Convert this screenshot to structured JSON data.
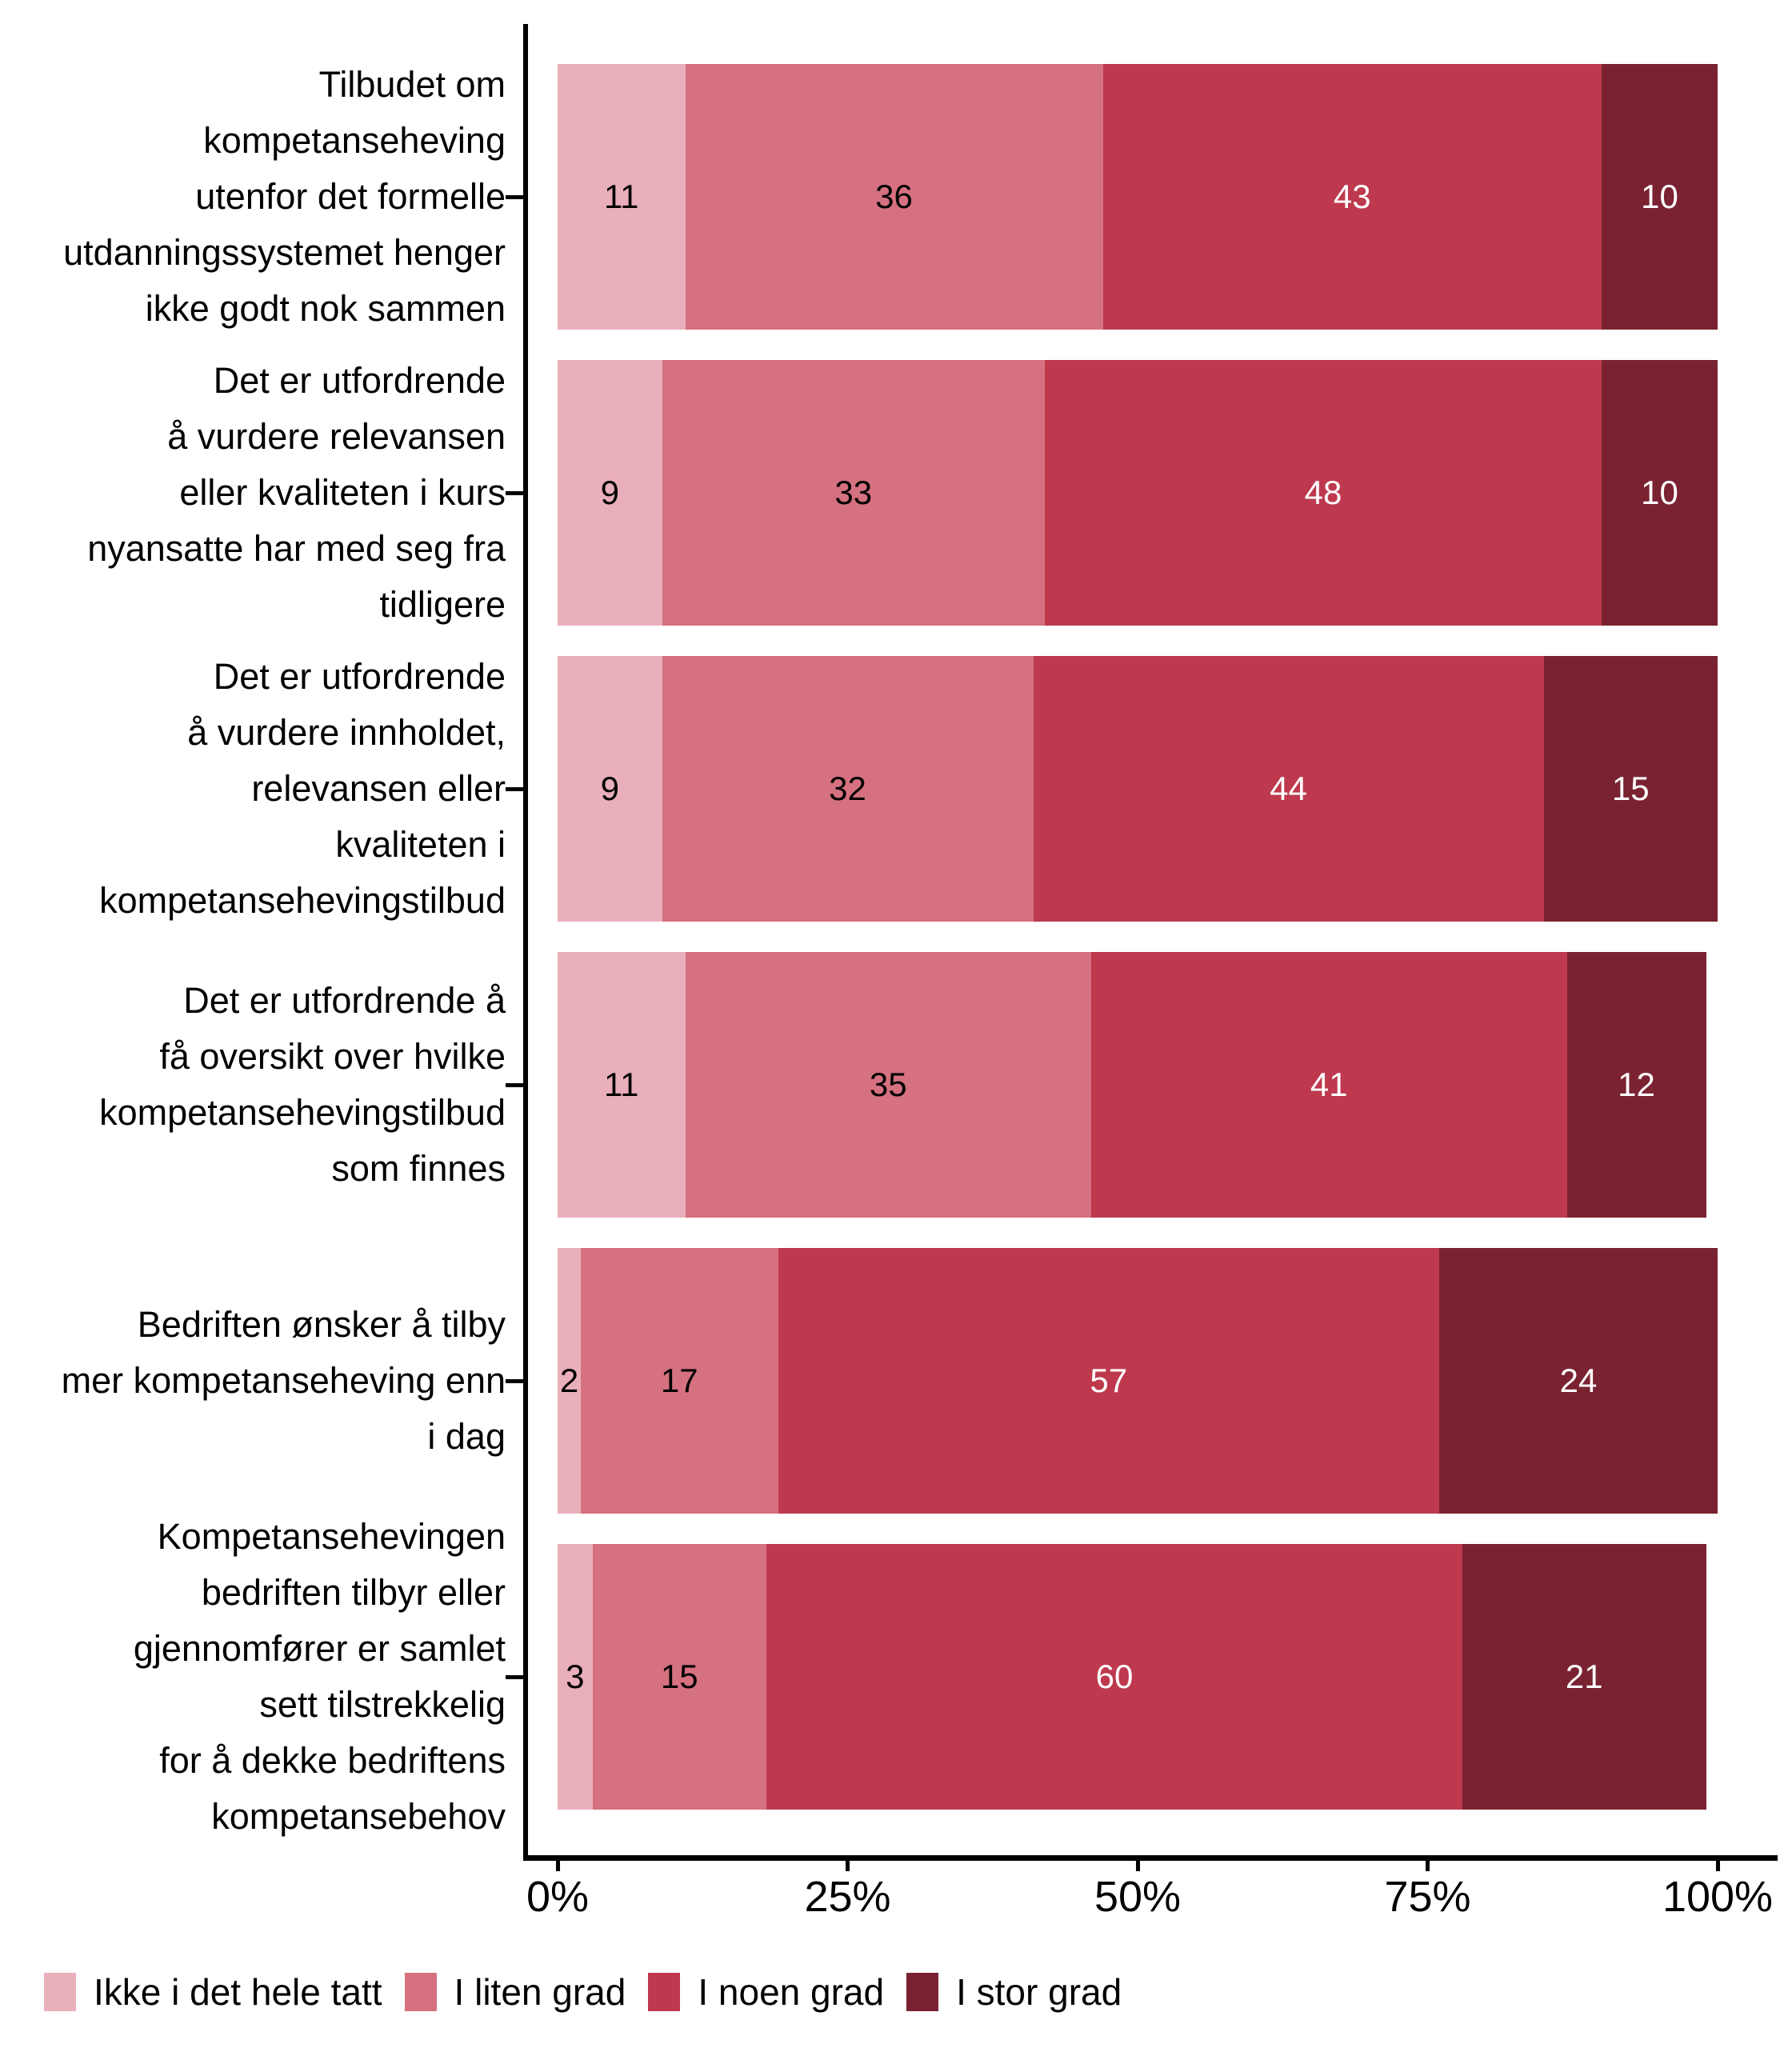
{
  "chart": {
    "background": "#ffffff",
    "axis_color": "#000000",
    "text_color": "#000000"
  },
  "x_axis": {
    "ticks": [
      {
        "label": "0%",
        "value": 0
      },
      {
        "label": "25%",
        "value": 25
      },
      {
        "label": "50%",
        "value": 50
      },
      {
        "label": "75%",
        "value": 75
      },
      {
        "label": "100%",
        "value": 100
      }
    ]
  },
  "chart_data": {
    "type": "bar",
    "orientation": "horizontal",
    "stacked": true,
    "unit": "percent",
    "xlim": [
      0,
      100
    ],
    "x_ticks": [
      "0%",
      "25%",
      "50%",
      "75%",
      "100%"
    ],
    "grid": false,
    "legend_position": "bottom",
    "categories": [
      "Tilbudet om kompetanseheving utenfor det formelle utdanningssystemet henger ikke godt nok sammen",
      "Det er utfordrende å vurdere relevansen eller kvaliteten i kurs nyansatte har med seg fra tidligere",
      "Det er utfordrende å vurdere innholdet, relevansen eller kvaliteten i kompetansehevingstilbud",
      "Det er utfordrende å få oversikt over hvilke kompetansehevingstilbud som finnes",
      "Bedriften ønsker å tilby mer kompetanseheving enn i dag",
      "Kompetansehevingen bedriften tilbyr eller gjennomfører er samlet sett tilstrekkelig for å dekke bedriftens kompetansebehov"
    ],
    "category_lines": [
      [
        "Tilbudet om",
        "kompetanseheving",
        "utenfor det formelle",
        "utdanningssystemet henger",
        "ikke godt nok sammen"
      ],
      [
        "Det er utfordrende",
        "å vurdere relevansen",
        "eller kvaliteten i kurs",
        "nyansatte har med seg fra",
        "tidligere"
      ],
      [
        "Det er utfordrende",
        "å vurdere innholdet,",
        "relevansen eller",
        "kvaliteten i",
        "kompetansehevingstilbud"
      ],
      [
        "Det er utfordrende å",
        "få oversikt over hvilke",
        "kompetansehevingstilbud",
        "som finnes"
      ],
      [
        "Bedriften ønsker å tilby",
        "mer kompetanseheving enn",
        "i dag"
      ],
      [
        "Kompetansehevingen",
        "bedriften tilbyr eller",
        "gjennomfører er samlet",
        "sett tilstrekkelig",
        "for å dekke bedriftens",
        "kompetansebehov"
      ]
    ],
    "series": [
      {
        "name": "Ikke i det hele tatt",
        "color": "#E9AFBA",
        "label_color": "#000000",
        "values": [
          11,
          9,
          9,
          11,
          2,
          3
        ]
      },
      {
        "name": "I liten grad",
        "color": "#D57180",
        "label_color": "#000000",
        "values": [
          36,
          33,
          32,
          35,
          17,
          15
        ]
      },
      {
        "name": "I noen grad",
        "color": "#BE394E",
        "label_color": "#ffffff",
        "values": [
          43,
          48,
          44,
          41,
          57,
          60
        ]
      },
      {
        "name": "I stor grad",
        "color": "#7A2231",
        "label_color": "#ffffff",
        "values": [
          10,
          10,
          15,
          12,
          24,
          21
        ]
      }
    ]
  }
}
